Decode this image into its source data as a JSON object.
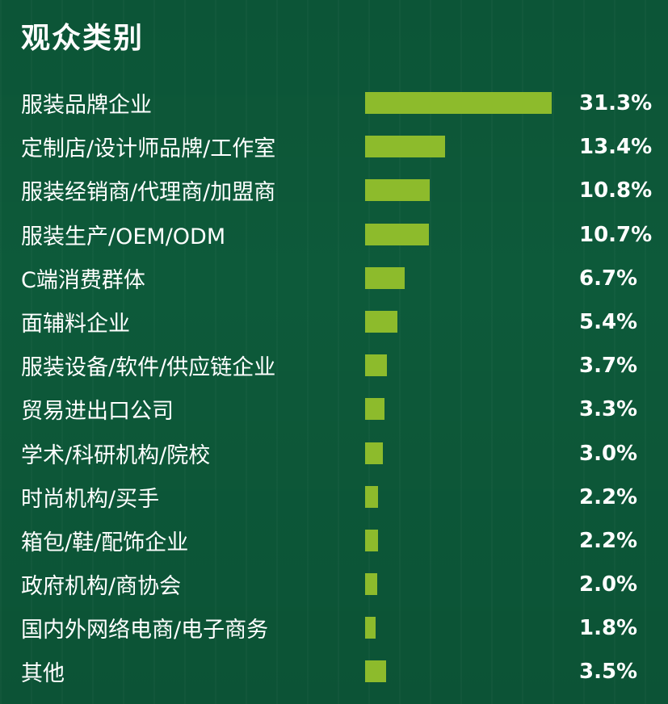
{
  "title": "观众类别",
  "chart_data": {
    "type": "bar",
    "orientation": "horizontal",
    "categories": [
      "服装品牌企业",
      "定制店/设计师品牌/工作室",
      "服装经销商/代理商/加盟商",
      "服装生产/OEM/ODM",
      "C端消费群体",
      "面辅料企业",
      "服装设备/软件/供应链企业",
      "贸易进出口公司",
      "学术/科研机构/院校",
      "时尚机构/买手",
      "箱包/鞋/配饰企业",
      "政府机构/商协会",
      "国内外网络电商/电子商务",
      "其他"
    ],
    "values": [
      31.3,
      13.4,
      10.8,
      10.7,
      6.7,
      5.4,
      3.7,
      3.3,
      3.0,
      2.2,
      2.2,
      2.0,
      1.8,
      3.5
    ],
    "value_labels": [
      "31.3%",
      "13.4%",
      "10.8%",
      "10.7%",
      "6.7%",
      "5.4%",
      "3.7%",
      "3.3%",
      "3.0%",
      "2.2%",
      "2.2%",
      "2.0%",
      "1.8%",
      "3.5%"
    ],
    "unit": "%",
    "bar_color": "#8dbb2c",
    "background_color": "#0d5a3a",
    "grid": false,
    "legend": "none"
  }
}
